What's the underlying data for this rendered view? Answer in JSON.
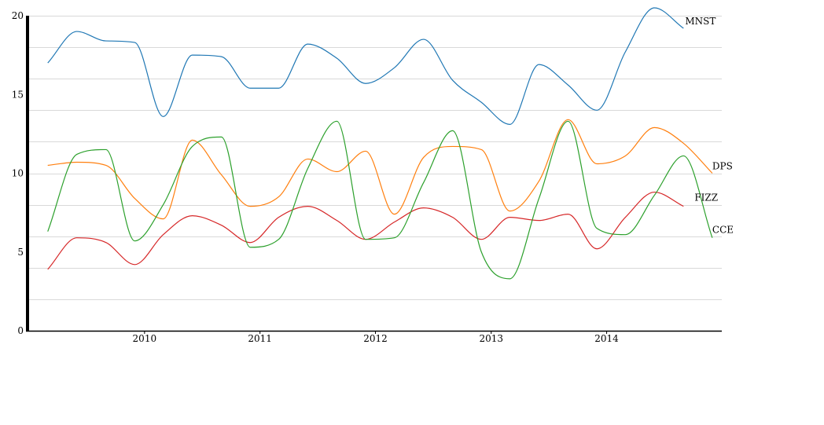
{
  "chart_data": {
    "type": "line",
    "title": "",
    "xlabel": "",
    "ylabel": "",
    "x_ticks": [
      "2010",
      "2011",
      "2012",
      "2013",
      "2014"
    ],
    "y_ticks": [
      "0",
      "5",
      "10",
      "15",
      "20"
    ],
    "ylim": [
      0,
      20
    ],
    "xlim": [
      "2009-01-01",
      "2014-12-31"
    ],
    "grid": true,
    "legend": "none",
    "x": [
      "2009-03-01",
      "2009-06-01",
      "2009-09-01",
      "2009-12-01",
      "2010-03-01",
      "2010-06-01",
      "2010-09-01",
      "2010-12-01",
      "2011-03-01",
      "2011-06-01",
      "2011-09-01",
      "2011-12-01",
      "2012-03-01",
      "2012-06-01",
      "2012-09-01",
      "2012-12-01",
      "2013-03-01",
      "2013-06-01",
      "2013-09-01",
      "2013-12-01",
      "2014-03-01",
      "2014-06-01",
      "2014-09-01",
      "2014-12-01"
    ],
    "series": [
      {
        "name": "MNST",
        "color": "#1f77b4",
        "values": [
          17.0,
          19.0,
          18.4,
          18.3,
          13.6,
          17.5,
          17.4,
          15.4,
          15.4,
          18.2,
          17.3,
          15.7,
          16.7,
          18.5,
          15.9,
          14.5,
          13.1,
          16.9,
          15.6,
          14.0,
          17.7,
          20.5,
          19.2,
          null
        ],
        "label_text": "MNST"
      },
      {
        "name": "DPS",
        "color": "#ff7f0e",
        "values": [
          10.5,
          10.7,
          10.5,
          8.4,
          7.1,
          12.1,
          9.9,
          7.9,
          8.5,
          10.9,
          10.1,
          11.4,
          7.4,
          11.0,
          11.7,
          11.5,
          7.6,
          9.5,
          13.4,
          10.6,
          11.1,
          12.9,
          11.9,
          10.0
        ],
        "label_text": "DPS"
      },
      {
        "name": "FIZZ",
        "color": "#d62728",
        "values": [
          3.9,
          5.9,
          5.6,
          4.2,
          6.1,
          7.3,
          6.7,
          5.6,
          7.2,
          7.9,
          7.0,
          5.8,
          6.9,
          7.8,
          7.2,
          5.8,
          7.2,
          7.0,
          7.4,
          5.2,
          7.2,
          8.8,
          7.9,
          null
        ],
        "label_text": "FIZZ"
      },
      {
        "name": "CCE",
        "color": "#2ca02c",
        "values": [
          6.3,
          11.2,
          11.5,
          5.7,
          8.0,
          11.7,
          12.3,
          5.3,
          5.8,
          10.3,
          13.3,
          5.8,
          5.9,
          9.4,
          12.7,
          5.0,
          3.3,
          8.4,
          13.3,
          6.5,
          6.1,
          8.6,
          11.1,
          5.9
        ],
        "label_text": "CCE"
      }
    ]
  }
}
